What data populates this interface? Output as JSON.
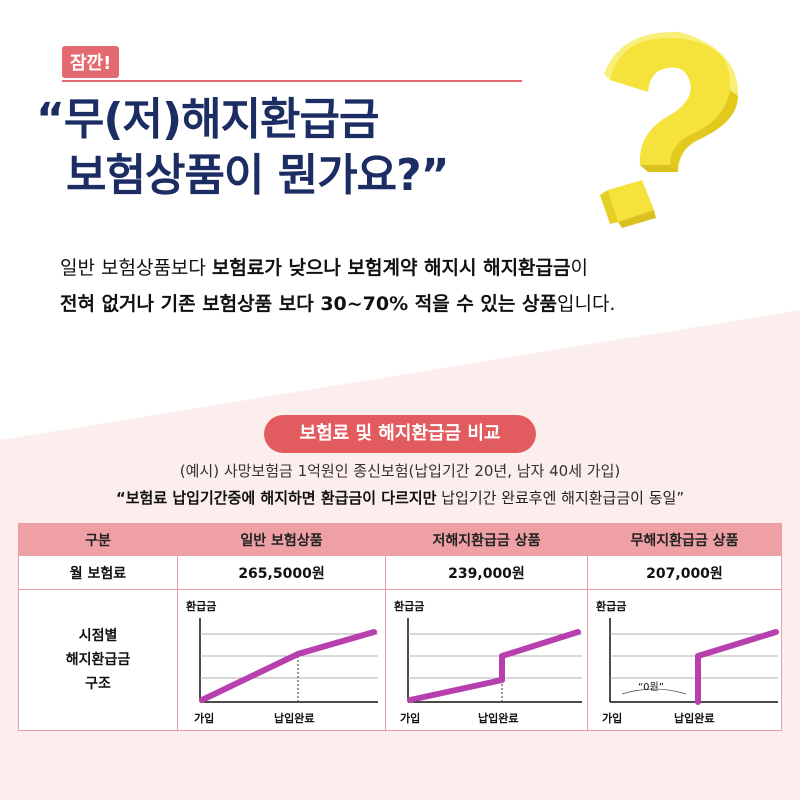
{
  "badge": "잠깐!",
  "headline": {
    "line1": "“무(저)해지환급금",
    "line2": "보험상품이 뭔가요?”"
  },
  "description": {
    "p1": "일반 보험상품보다 ",
    "b1": "보험료가 낮으나 보험계약 해지시 해지환급금",
    "p2": "이",
    "b2": "전혀 없거나 기존 보험상품 보다 30~70% 적을 수 있는 상품",
    "p3": "입니다."
  },
  "section_title": "보험료 및 해지환급금 비교",
  "example": "(예시) 사망보험금 1억원인 종신보험(납입기간 20년, 남자 40세 가입)",
  "quote": {
    "bold": "“보험료 납입기간중에 해지하면 환급금이 다르지만",
    "normal": " 납입기간 완료후엔 해지환급금이 동일”"
  },
  "table": {
    "headers": [
      "구분",
      "일반 보험상품",
      "저해지환급금 상품",
      "무해지환급금 상품"
    ],
    "fee_label": "월 보험료",
    "fees": [
      "265,5000원",
      "239,000원",
      "207,000원"
    ],
    "structure_label_1": "시점별",
    "structure_label_2": "해지환급금",
    "structure_label_3": "구조",
    "chart_ylabel": "환급금",
    "chart_x_start": "가입",
    "chart_x_end": "납입완료",
    "zero_label": "“0원”"
  },
  "colors": {
    "accent": "#e25c5f",
    "header_bg": "#eea0a4",
    "navy": "#1c2d63",
    "line": "#b83fae",
    "pink_bg": "#fdeeee",
    "question_mark": "#f5e23a"
  }
}
